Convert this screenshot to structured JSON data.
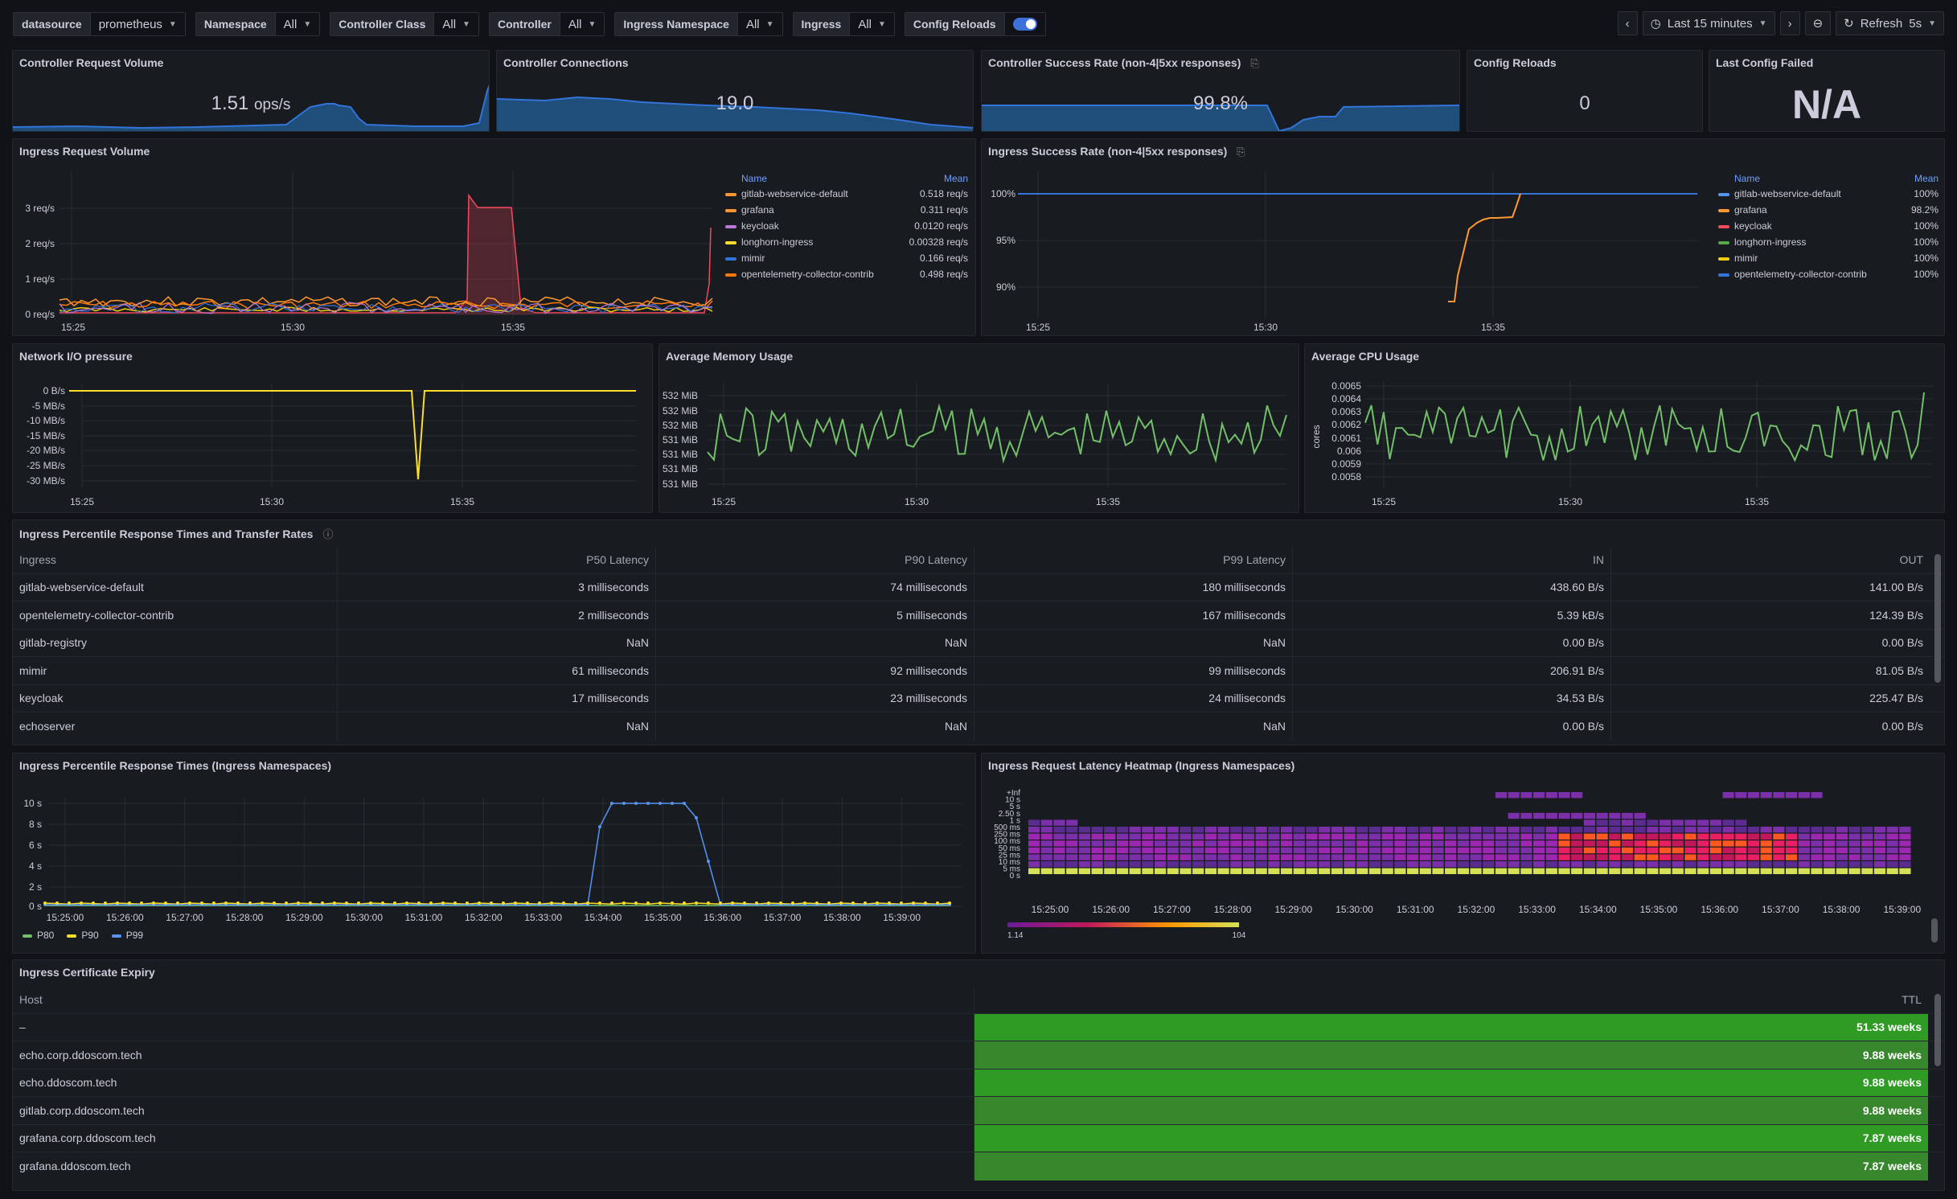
{
  "toolbar": {
    "variables": [
      {
        "label": "datasource",
        "value": "prometheus"
      },
      {
        "label": "Namespace",
        "value": "All"
      },
      {
        "label": "Controller Class",
        "value": "All"
      },
      {
        "label": "Controller",
        "value": "All"
      },
      {
        "label": "Ingress Namespace",
        "value": "All"
      },
      {
        "label": "Ingress",
        "value": "All"
      },
      {
        "label": "Config Reloads",
        "value": ""
      }
    ],
    "time_range": "Last 15 minutes",
    "refresh_label": "Refresh",
    "refresh_interval": "5s"
  },
  "stats": {
    "request_volume": {
      "title": "Controller Request Volume",
      "value": "1.51",
      "unit": "ops/s"
    },
    "connections": {
      "title": "Controller Connections",
      "value": "19.0"
    },
    "success_rate": {
      "title": "Controller Success Rate (non-4|5xx responses)",
      "value": "99.8%"
    },
    "config_reloads": {
      "title": "Config Reloads",
      "value": "0"
    },
    "last_config_failed": {
      "title": "Last Config Failed",
      "value": "N/A"
    }
  },
  "ingress_request_volume": {
    "title": "Ingress Request Volume",
    "legend_name": "Name",
    "legend_mean": "Mean",
    "yticks": [
      "3 req/s",
      "2 req/s",
      "1 req/s",
      "0 req/s"
    ],
    "xticks": [
      "15:25",
      "15:30",
      "15:35"
    ],
    "series": [
      {
        "name": "gitlab-webservice-default",
        "mean": "0.518 req/s",
        "color": "#ff9830"
      },
      {
        "name": "grafana",
        "mean": "0.311 req/s",
        "color": "#f2cc0c"
      },
      {
        "name": "keycloak",
        "mean": "0.0120 req/s",
        "color": "#f2495c"
      },
      {
        "name": "longhorn-ingress",
        "mean": "0.00328 req/s",
        "color": "#fade2a"
      },
      {
        "name": "mimir",
        "mean": "0.166 req/s",
        "color": "#3274d9"
      },
      {
        "name": "opentelemetry-collector-contrib",
        "mean": "0.498 req/s",
        "color": "#ff780a"
      }
    ]
  },
  "ingress_success_rate": {
    "title": "Ingress Success Rate (non-4|5xx responses)",
    "legend_name": "Name",
    "legend_mean": "Mean",
    "yticks": [
      "100%",
      "95%",
      "90%"
    ],
    "xticks": [
      "15:25",
      "15:30",
      "15:35"
    ],
    "series": [
      {
        "name": "gitlab-webservice-default",
        "mean": "100%",
        "color": "#5794f2"
      },
      {
        "name": "grafana",
        "mean": "98.2%",
        "color": "#ff9830"
      },
      {
        "name": "keycloak",
        "mean": "100%",
        "color": "#f2495c"
      },
      {
        "name": "longhorn-ingress",
        "mean": "100%",
        "color": "#56a64b"
      },
      {
        "name": "mimir",
        "mean": "100%",
        "color": "#f2cc0c"
      },
      {
        "name": "opentelemetry-collector-contrib",
        "mean": "100%",
        "color": "#3274d9"
      }
    ]
  },
  "network_io": {
    "title": "Network I/O pressure",
    "yticks": [
      "0 B/s",
      "-5 MB/s",
      "-10 MB/s",
      "-15 MB/s",
      "-20 MB/s",
      "-25 MB/s",
      "-30 MB/s"
    ],
    "xticks": [
      "15:25",
      "15:30",
      "15:35"
    ]
  },
  "memory": {
    "title": "Average Memory Usage",
    "yticks": [
      "532 MiB",
      "532 MiB",
      "532 MiB",
      "531 MiB",
      "531 MiB",
      "531 MiB",
      "531 MiB"
    ],
    "xticks": [
      "15:25",
      "15:30",
      "15:35"
    ]
  },
  "cpu": {
    "title": "Average CPU Usage",
    "ylabel": "cores",
    "yticks": [
      "0.0065",
      "0.0064",
      "0.0063",
      "0.0062",
      "0.0061",
      "0.006",
      "0.0059",
      "0.0058"
    ],
    "xticks": [
      "15:25",
      "15:30",
      "15:35"
    ]
  },
  "percentile_table": {
    "title": "Ingress Percentile Response Times and Transfer Rates",
    "columns": [
      "Ingress",
      "P50 Latency",
      "P90 Latency",
      "P99 Latency",
      "IN",
      "OUT"
    ],
    "rows": [
      [
        "gitlab-webservice-default",
        "3 milliseconds",
        "74 milliseconds",
        "180 milliseconds",
        "438.60 B/s",
        "141.00 B/s"
      ],
      [
        "opentelemetry-collector-contrib",
        "2 milliseconds",
        "5 milliseconds",
        "167 milliseconds",
        "5.39 kB/s",
        "124.39 B/s"
      ],
      [
        "gitlab-registry",
        "NaN",
        "NaN",
        "NaN",
        "0.00 B/s",
        "0.00 B/s"
      ],
      [
        "mimir",
        "61 milliseconds",
        "92 milliseconds",
        "99 milliseconds",
        "206.91 B/s",
        "81.05 B/s"
      ],
      [
        "keycloak",
        "17 milliseconds",
        "23 milliseconds",
        "24 milliseconds",
        "34.53 B/s",
        "225.47 B/s"
      ],
      [
        "echoserver",
        "NaN",
        "NaN",
        "NaN",
        "0.00 B/s",
        "0.00 B/s"
      ]
    ]
  },
  "percentile_chart": {
    "title": "Ingress Percentile Response Times (Ingress Namespaces)",
    "yticks": [
      "10 s",
      "8 s",
      "6 s",
      "4 s",
      "2 s",
      "0 s"
    ],
    "xticks": [
      "15:25:00",
      "15:26:00",
      "15:27:00",
      "15:28:00",
      "15:29:00",
      "15:30:00",
      "15:31:00",
      "15:32:00",
      "15:33:00",
      "15:34:00",
      "15:35:00",
      "15:36:00",
      "15:37:00",
      "15:38:00",
      "15:39:00"
    ],
    "legend": [
      {
        "name": "P80",
        "color": "#73bf69"
      },
      {
        "name": "P90",
        "color": "#fade2a"
      },
      {
        "name": "P99",
        "color": "#5794f2"
      }
    ]
  },
  "heatmap": {
    "title": "Ingress Request Latency Heatmap (Ingress Namespaces)",
    "yticks": [
      "+Inf",
      "10 s",
      "5 s",
      "2.50 s",
      "1 s",
      "500 ms",
      "250 ms",
      "100 ms",
      "50 ms",
      "25 ms",
      "10 ms",
      "5 ms",
      "0 s"
    ],
    "xticks": [
      "15:25:00",
      "15:26:00",
      "15:27:00",
      "15:28:00",
      "15:29:00",
      "15:30:00",
      "15:31:00",
      "15:32:00",
      "15:33:00",
      "15:34:00",
      "15:35:00",
      "15:36:00",
      "15:37:00",
      "15:38:00",
      "15:39:00"
    ],
    "scale_min": "1.14",
    "scale_max": "104"
  },
  "cert_expiry": {
    "title": "Ingress Certificate Expiry",
    "columns": [
      "Host",
      "TTL"
    ],
    "rows": [
      [
        "–",
        "51.33 weeks"
      ],
      [
        "echo.corp.ddoscom.tech",
        "9.88 weeks"
      ],
      [
        "echo.ddoscom.tech",
        "9.88 weeks"
      ],
      [
        "gitlab.corp.ddoscom.tech",
        "9.88 weeks"
      ],
      [
        "grafana.corp.ddoscom.tech",
        "7.87 weeks"
      ],
      [
        "grafana.ddoscom.tech",
        "7.87 weeks"
      ]
    ]
  }
}
